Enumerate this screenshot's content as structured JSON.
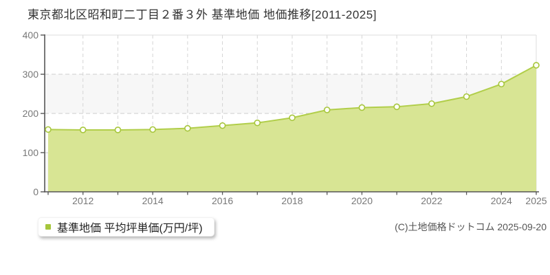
{
  "title": "東京都北区昭和町二丁目２番３外 基準地価 地価推移[2011-2025]",
  "legend": {
    "label": "基準地価 平均坪単価(万円/坪)",
    "marker_color": "#a6c63c"
  },
  "copyright": "(C)土地価格ドットコム 2025-09-20",
  "chart_data": {
    "type": "area",
    "title": "東京都北区昭和町二丁目２番３外 基準地価 地価推移[2011-2025]",
    "x": [
      2011,
      2012,
      2013,
      2014,
      2015,
      2016,
      2017,
      2018,
      2019,
      2020,
      2021,
      2022,
      2023,
      2024,
      2025
    ],
    "series": [
      {
        "name": "基準地価 平均坪単価(万円/坪)",
        "values": [
          159,
          158,
          158,
          159,
          162,
          169,
          176,
          189,
          209,
          215,
          217,
          225,
          243,
          275,
          323
        ]
      }
    ],
    "unit": "万円/坪",
    "ylim": [
      0,
      400
    ],
    "yticks": [
      0,
      100,
      200,
      300,
      400
    ],
    "ytick_labels": [
      "0",
      "100",
      "200",
      "300",
      "400"
    ],
    "xticks_labeled": [
      2012,
      2014,
      2016,
      2018,
      2020,
      2022,
      2024,
      2025
    ],
    "grid": true,
    "legend_position": "bottom-left",
    "colors": {
      "area_fill": "#d8e594",
      "line": "#b1ce4a",
      "marker_fill": "#fffef6",
      "marker_stroke": "#a6c63c",
      "band": "#f7f7f7",
      "grid_h": "#cccccc",
      "grid_v": "#d4d4d4",
      "border": "#dddddd",
      "axis": "#555555",
      "tick_text": "#777777"
    }
  }
}
